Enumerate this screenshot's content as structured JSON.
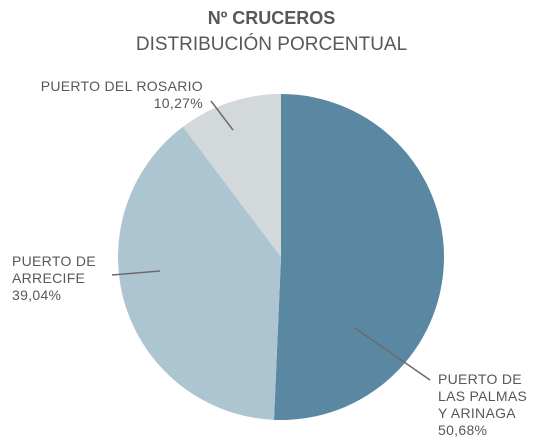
{
  "chart_data": {
    "type": "pie",
    "title": "Nº CRUCEROS",
    "subtitle": "DISTRIBUCIÓN PORCENTUAL",
    "categories": [
      "PUERTO DE LAS PALMAS Y ARINAGA",
      "PUERTO DE ARRECIFE",
      "PUERTO DEL ROSARIO"
    ],
    "values": [
      50.68,
      39.04,
      10.27
    ],
    "value_labels": [
      "50,68%",
      "39,04%",
      "10,27%"
    ],
    "colors": [
      "#5a87a2",
      "#adc4d1",
      "#d3d8da"
    ]
  }
}
